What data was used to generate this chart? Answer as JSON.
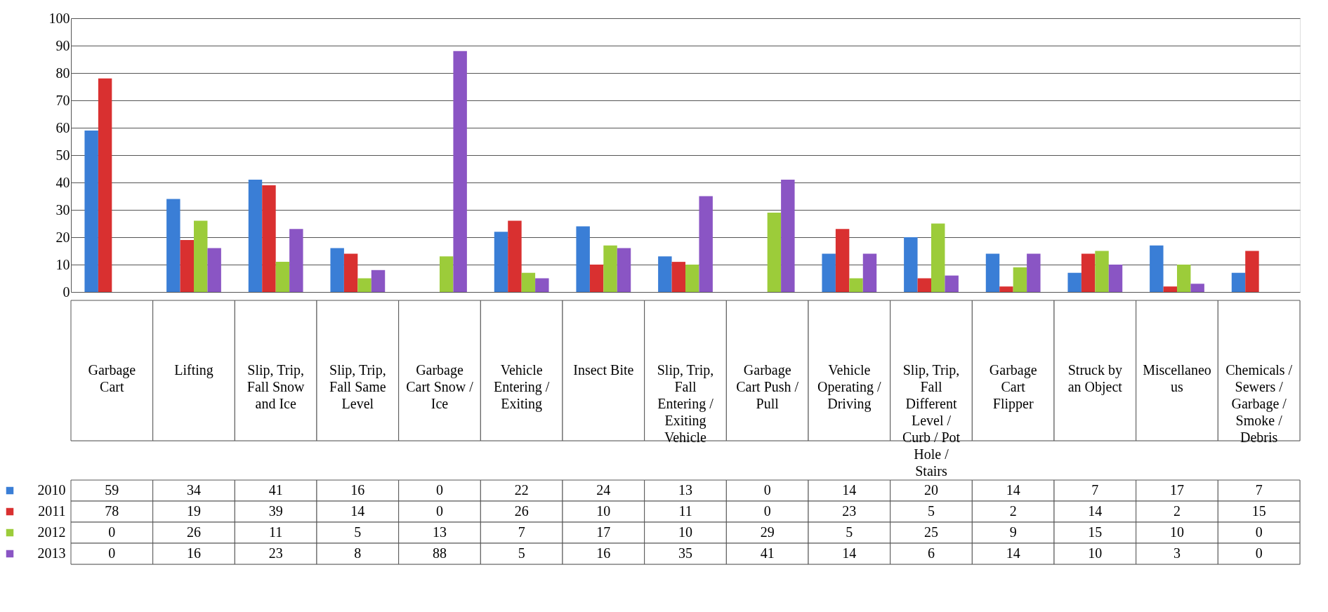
{
  "chart_data": {
    "type": "bar",
    "categories": [
      "Garbage Cart",
      "Lifting",
      "Slip, Trip, Fall Snow and Ice",
      "Slip, Trip, Fall Same Level",
      "Garbage Cart Snow / Ice",
      "Vehicle Entering / Exiting",
      "Insect Bite",
      "Slip, Trip, Fall Entering / Exiting Vehicle",
      "Garbage Cart Push / Pull",
      "Vehicle Operating / Driving",
      "Slip, Trip, Fall Different Level / Curb / Pot Hole / Stairs",
      "Garbage Cart Flipper",
      "Struck by an Object",
      "Miscellaneous",
      "Chemicals / Sewers / Garbage / Smoke / Debris"
    ],
    "series": [
      {
        "name": "2010",
        "color": "#3a7ed6",
        "values": [
          59,
          34,
          41,
          16,
          0,
          22,
          24,
          13,
          0,
          14,
          20,
          14,
          7,
          17,
          7
        ]
      },
      {
        "name": "2011",
        "color": "#d93030",
        "values": [
          78,
          19,
          39,
          14,
          0,
          26,
          10,
          11,
          0,
          23,
          5,
          2,
          14,
          2,
          15
        ]
      },
      {
        "name": "2012",
        "color": "#9ccc3a",
        "values": [
          0,
          26,
          11,
          5,
          13,
          7,
          17,
          10,
          29,
          5,
          25,
          9,
          15,
          10,
          0
        ]
      },
      {
        "name": "2013",
        "color": "#8a55c4",
        "values": [
          0,
          16,
          23,
          8,
          88,
          5,
          16,
          35,
          41,
          14,
          6,
          14,
          10,
          3,
          0
        ]
      }
    ],
    "ylim": [
      0,
      100
    ],
    "yticks": [
      0,
      10,
      20,
      30,
      40,
      50,
      60,
      70,
      80,
      90,
      100
    ],
    "grid": "y",
    "legend": "bottom",
    "data_labels": true
  }
}
